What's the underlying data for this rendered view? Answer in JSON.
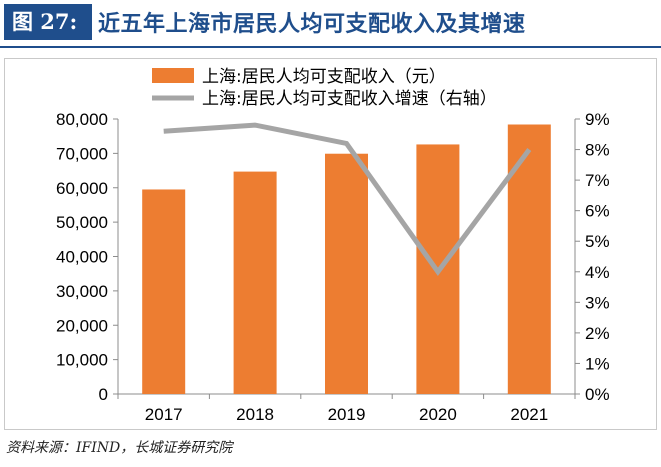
{
  "header": {
    "figure_label": "图 27:",
    "title": "近五年上海市居民人均可支配收入及其增速"
  },
  "source": "资料来源：IFIND，长城证券研究院",
  "colors": {
    "header_bg": "#1f4e8c",
    "bar": "#ed7d31",
    "line": "#a5a5a5"
  },
  "chart_data": {
    "type": "bar",
    "categories": [
      "2017",
      "2018",
      "2019",
      "2020",
      "2021"
    ],
    "series": [
      {
        "name": "上海:居民人均可支配收入（元）",
        "type": "bar",
        "axis": "left",
        "values": [
          59500,
          64700,
          69900,
          72600,
          78400
        ]
      },
      {
        "name": "上海:居民人均可支配收入增速（右轴）",
        "type": "line",
        "axis": "right",
        "values": [
          8.6,
          8.8,
          8.2,
          4.0,
          8.0
        ]
      }
    ],
    "left_axis": {
      "ylim": [
        0,
        80000
      ],
      "ticks": [
        "0",
        "10,000",
        "20,000",
        "30,000",
        "40,000",
        "50,000",
        "60,000",
        "70,000",
        "80,000"
      ]
    },
    "right_axis": {
      "ylim": [
        0,
        9
      ],
      "ticks": [
        "0%",
        "1%",
        "2%",
        "3%",
        "4%",
        "5%",
        "6%",
        "7%",
        "8%",
        "9%"
      ]
    },
    "legend_position": "top-center",
    "grid": false
  }
}
